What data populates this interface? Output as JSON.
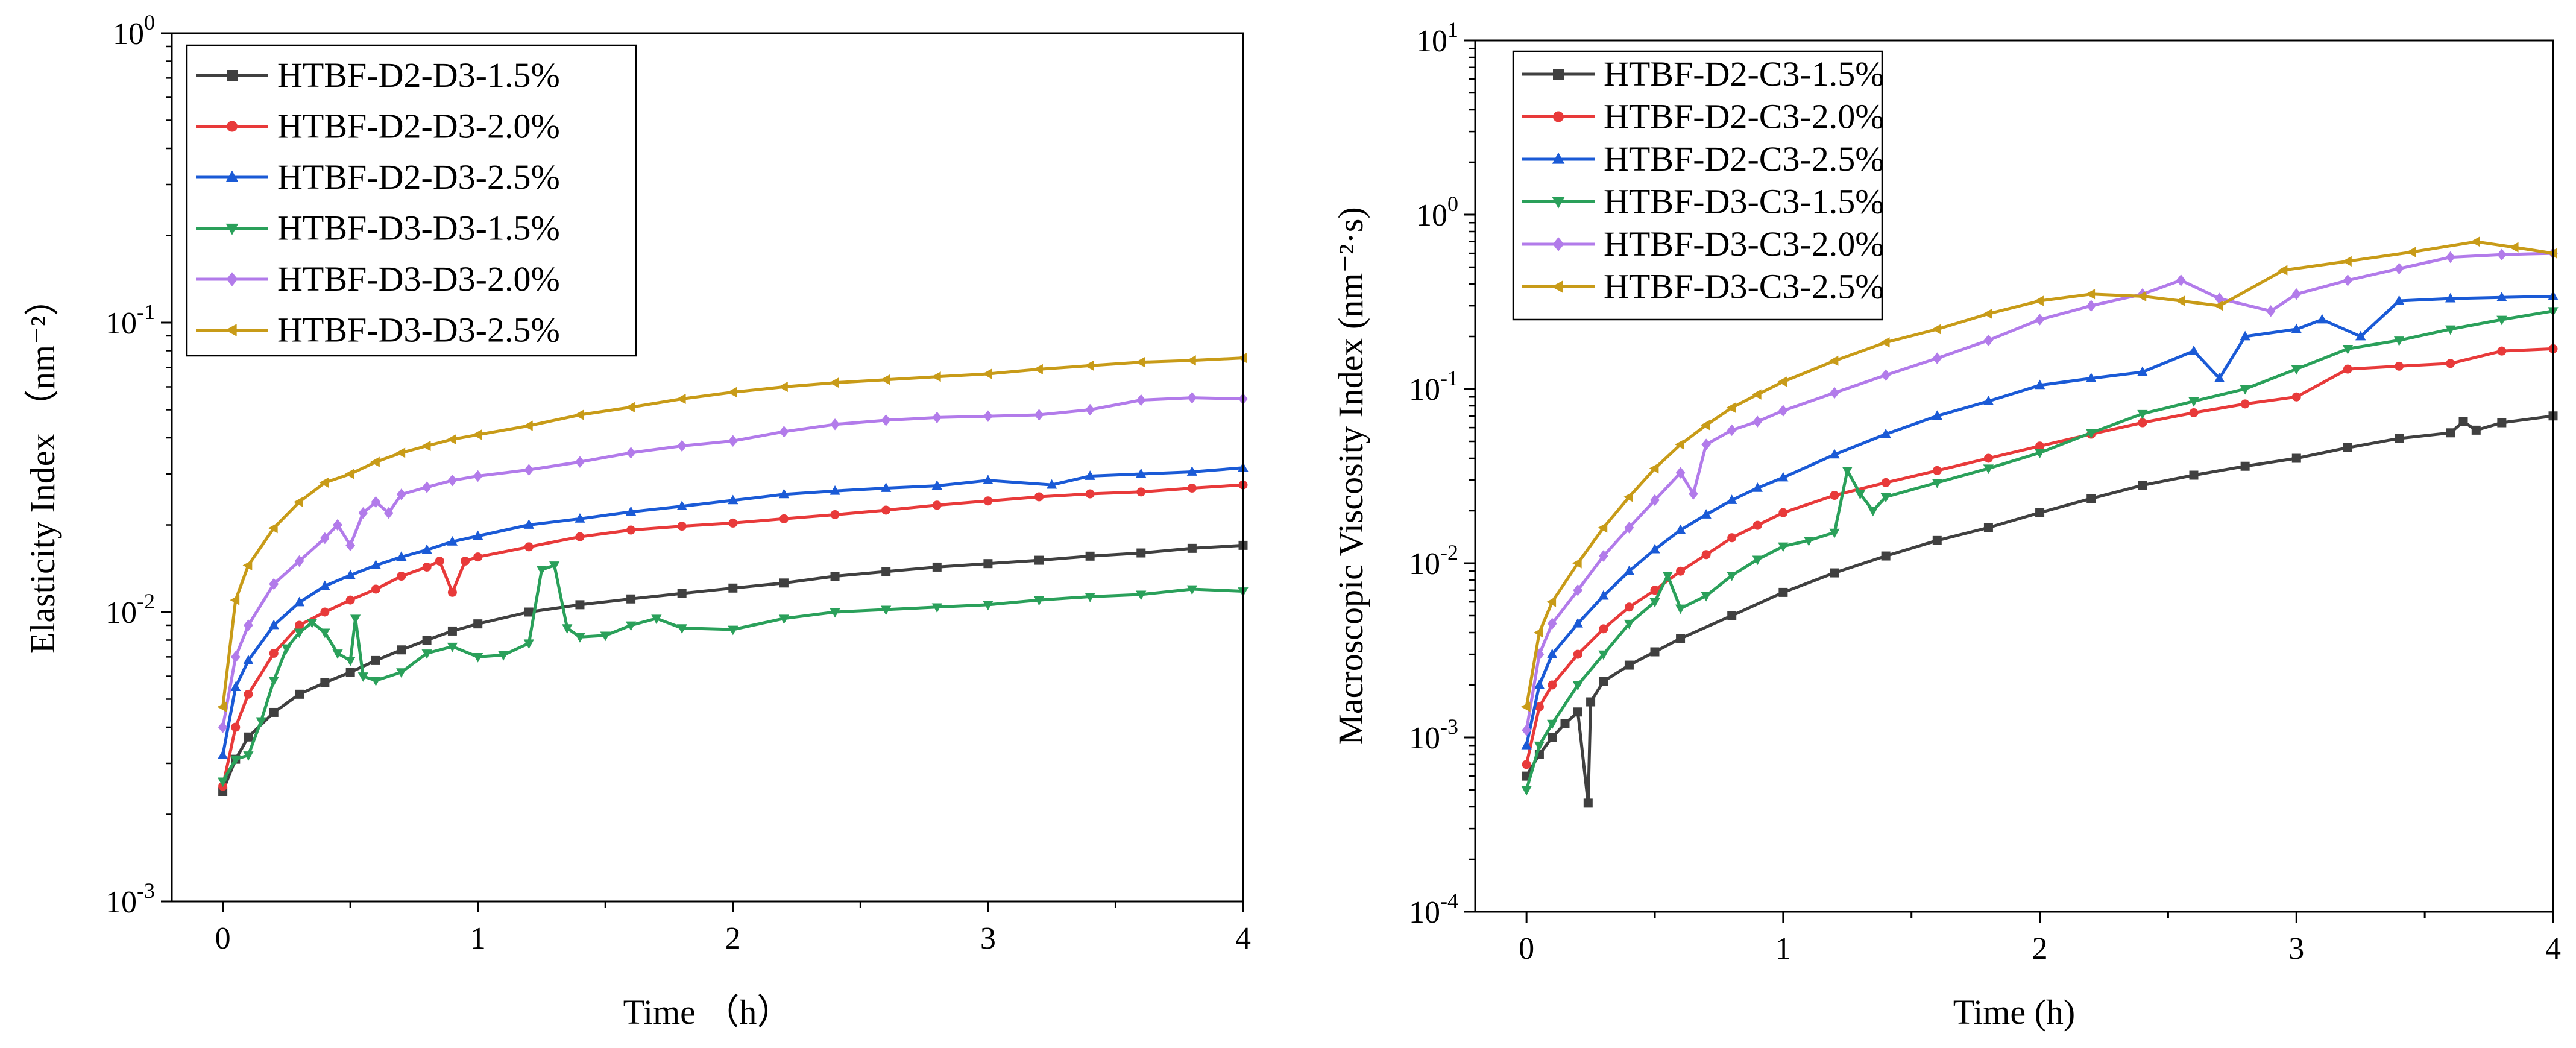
{
  "chart_data": [
    {
      "type": "line",
      "xlabel": "Time （h）",
      "ylabel": "Elasticity Index （nm⁻²）",
      "xlim": [
        -0.2,
        4
      ],
      "ylim": [
        0.001,
        1
      ],
      "yscale": "log",
      "xticks": [
        0,
        1,
        2,
        3,
        4
      ],
      "yticks": [
        {
          "value": 0.001,
          "base": "10",
          "exp": "-3"
        },
        {
          "value": 0.01,
          "base": "10",
          "exp": "-2"
        },
        {
          "value": 0.1,
          "base": "10",
          "exp": "-1"
        },
        {
          "value": 1,
          "base": "10",
          "exp": "0"
        }
      ],
      "grid": false,
      "legend_position": "top-left",
      "series": [
        {
          "name": "HTBF-D2-D3-1.5%",
          "color": "#404040",
          "marker": "square",
          "x": [
            0,
            0.05,
            0.1,
            0.2,
            0.3,
            0.4,
            0.5,
            0.6,
            0.7,
            0.8,
            0.9,
            1.0,
            1.2,
            1.4,
            1.6,
            1.8,
            2.0,
            2.2,
            2.4,
            2.6,
            2.8,
            3.0,
            3.2,
            3.4,
            3.6,
            3.8,
            4.0
          ],
          "y": [
            0.0024,
            0.0031,
            0.0037,
            0.0045,
            0.0052,
            0.0057,
            0.0062,
            0.0068,
            0.0074,
            0.008,
            0.0086,
            0.0091,
            0.01,
            0.0106,
            0.0111,
            0.0116,
            0.0121,
            0.0126,
            0.0133,
            0.0138,
            0.0143,
            0.0147,
            0.0151,
            0.0156,
            0.016,
            0.0166,
            0.017
          ]
        },
        {
          "name": "HTBF-D2-D3-2.0%",
          "color": "#e83a3a",
          "marker": "circle",
          "x": [
            0,
            0.05,
            0.1,
            0.2,
            0.3,
            0.4,
            0.5,
            0.6,
            0.7,
            0.8,
            0.85,
            0.9,
            0.95,
            1.0,
            1.2,
            1.4,
            1.6,
            1.8,
            2.0,
            2.2,
            2.4,
            2.6,
            2.8,
            3.0,
            3.2,
            3.4,
            3.6,
            3.8,
            4.0
          ],
          "y": [
            0.0025,
            0.004,
            0.0052,
            0.0072,
            0.009,
            0.01,
            0.011,
            0.012,
            0.0133,
            0.0143,
            0.015,
            0.0117,
            0.015,
            0.0155,
            0.0168,
            0.0182,
            0.0192,
            0.0198,
            0.0203,
            0.021,
            0.0217,
            0.0225,
            0.0234,
            0.0242,
            0.025,
            0.0256,
            0.026,
            0.0268,
            0.0275
          ]
        },
        {
          "name": "HTBF-D2-D3-2.5%",
          "color": "#1a5ad6",
          "marker": "triangle-up",
          "x": [
            0,
            0.05,
            0.1,
            0.2,
            0.3,
            0.4,
            0.5,
            0.6,
            0.7,
            0.8,
            0.9,
            1.0,
            1.2,
            1.4,
            1.6,
            1.8,
            2.0,
            2.2,
            2.4,
            2.6,
            2.8,
            3.0,
            3.25,
            3.4,
            3.6,
            3.8,
            4.0
          ],
          "y": [
            0.0032,
            0.0055,
            0.0068,
            0.009,
            0.0108,
            0.0123,
            0.0134,
            0.0145,
            0.0155,
            0.0164,
            0.0175,
            0.0183,
            0.02,
            0.021,
            0.0222,
            0.0232,
            0.0243,
            0.0255,
            0.0262,
            0.0268,
            0.0273,
            0.0285,
            0.0275,
            0.0295,
            0.03,
            0.0305,
            0.0315
          ]
        },
        {
          "name": "HTBF-D3-D3-1.5%",
          "color": "#2aa05a",
          "marker": "triangle-down",
          "x": [
            0,
            0.05,
            0.1,
            0.15,
            0.2,
            0.25,
            0.3,
            0.35,
            0.4,
            0.45,
            0.5,
            0.52,
            0.55,
            0.6,
            0.7,
            0.8,
            0.9,
            1.0,
            1.1,
            1.2,
            1.25,
            1.3,
            1.35,
            1.4,
            1.5,
            1.6,
            1.7,
            1.8,
            2.0,
            2.2,
            2.4,
            2.6,
            2.8,
            3.0,
            3.2,
            3.4,
            3.6,
            3.8,
            4.0
          ],
          "y": [
            0.0026,
            0.0031,
            0.0032,
            0.0042,
            0.0058,
            0.0075,
            0.0085,
            0.0092,
            0.0085,
            0.0072,
            0.0068,
            0.0095,
            0.006,
            0.0058,
            0.0062,
            0.0072,
            0.0076,
            0.007,
            0.0071,
            0.0078,
            0.014,
            0.0145,
            0.0088,
            0.0082,
            0.0083,
            0.009,
            0.0095,
            0.0088,
            0.0087,
            0.0095,
            0.01,
            0.0102,
            0.0104,
            0.0106,
            0.011,
            0.0113,
            0.0115,
            0.012,
            0.0118
          ]
        },
        {
          "name": "HTBF-D3-D3-2.0%",
          "color": "#b27bea",
          "marker": "diamond",
          "x": [
            0,
            0.05,
            0.1,
            0.2,
            0.3,
            0.4,
            0.45,
            0.5,
            0.55,
            0.6,
            0.65,
            0.7,
            0.8,
            0.9,
            1.0,
            1.2,
            1.4,
            1.6,
            1.8,
            2.0,
            2.2,
            2.4,
            2.6,
            2.8,
            3.0,
            3.2,
            3.4,
            3.6,
            3.8,
            4.0
          ],
          "y": [
            0.004,
            0.007,
            0.009,
            0.0125,
            0.015,
            0.018,
            0.02,
            0.017,
            0.022,
            0.024,
            0.022,
            0.0255,
            0.027,
            0.0285,
            0.0295,
            0.031,
            0.033,
            0.0355,
            0.0375,
            0.039,
            0.042,
            0.0445,
            0.046,
            0.047,
            0.0475,
            0.048,
            0.05,
            0.054,
            0.055,
            0.0545
          ]
        },
        {
          "name": "HTBF-D3-D3-2.5%",
          "color": "#c89b18",
          "marker": "triangle-left",
          "x": [
            0,
            0.05,
            0.1,
            0.2,
            0.3,
            0.4,
            0.5,
            0.6,
            0.7,
            0.8,
            0.9,
            1.0,
            1.2,
            1.4,
            1.6,
            1.8,
            2.0,
            2.2,
            2.4,
            2.6,
            2.8,
            3.0,
            3.2,
            3.4,
            3.6,
            3.8,
            4.0
          ],
          "y": [
            0.0047,
            0.011,
            0.0145,
            0.0195,
            0.024,
            0.028,
            0.03,
            0.033,
            0.0355,
            0.0375,
            0.0395,
            0.041,
            0.044,
            0.048,
            0.051,
            0.0545,
            0.0575,
            0.06,
            0.062,
            0.0635,
            0.065,
            0.0665,
            0.069,
            0.071,
            0.073,
            0.074,
            0.0755
          ]
        }
      ]
    },
    {
      "type": "line",
      "xlabel": "Time (h)",
      "ylabel": "Macroscopic Viscosity Index (nm⁻²·s)",
      "xlim": [
        -0.2,
        4
      ],
      "ylim": [
        0.0001,
        10
      ],
      "yscale": "log",
      "xticks": [
        0,
        1,
        2,
        3,
        4
      ],
      "yticks": [
        {
          "value": 0.0001,
          "base": "10",
          "exp": "-4"
        },
        {
          "value": 0.001,
          "base": "10",
          "exp": "-3"
        },
        {
          "value": 0.01,
          "base": "10",
          "exp": "-2"
        },
        {
          "value": 0.1,
          "base": "10",
          "exp": "-1"
        },
        {
          "value": 1,
          "base": "10",
          "exp": "0"
        },
        {
          "value": 10,
          "base": "10",
          "exp": "1"
        }
      ],
      "grid": false,
      "legend_position": "top-left",
      "series": [
        {
          "name": "HTBF-D2-C3-1.5%",
          "color": "#404040",
          "marker": "square",
          "x": [
            0,
            0.05,
            0.1,
            0.15,
            0.2,
            0.24,
            0.25,
            0.3,
            0.4,
            0.5,
            0.6,
            0.8,
            1.0,
            1.2,
            1.4,
            1.6,
            1.8,
            2.0,
            2.2,
            2.4,
            2.6,
            2.8,
            3.0,
            3.2,
            3.4,
            3.6,
            3.65,
            3.7,
            3.8,
            4.0
          ],
          "y": [
            0.0006,
            0.0008,
            0.001,
            0.0012,
            0.0014,
            0.00042,
            0.0016,
            0.0021,
            0.0026,
            0.0031,
            0.0037,
            0.005,
            0.0068,
            0.0088,
            0.011,
            0.0135,
            0.016,
            0.0195,
            0.0235,
            0.028,
            0.032,
            0.036,
            0.04,
            0.046,
            0.052,
            0.056,
            0.065,
            0.058,
            0.064,
            0.07
          ]
        },
        {
          "name": "HTBF-D2-C3-2.0%",
          "color": "#e83a3a",
          "marker": "circle",
          "x": [
            0,
            0.05,
            0.1,
            0.2,
            0.3,
            0.4,
            0.5,
            0.6,
            0.7,
            0.8,
            0.9,
            1.0,
            1.2,
            1.4,
            1.6,
            1.8,
            2.0,
            2.2,
            2.4,
            2.6,
            2.8,
            3.0,
            3.2,
            3.4,
            3.6,
            3.8,
            4.0
          ],
          "y": [
            0.0007,
            0.0015,
            0.002,
            0.003,
            0.0042,
            0.0056,
            0.007,
            0.009,
            0.0112,
            0.014,
            0.0165,
            0.0195,
            0.0245,
            0.029,
            0.034,
            0.04,
            0.047,
            0.055,
            0.064,
            0.073,
            0.082,
            0.09,
            0.13,
            0.135,
            0.14,
            0.165,
            0.17
          ]
        },
        {
          "name": "HTBF-D2-C3-2.5%",
          "color": "#1a5ad6",
          "marker": "triangle-up",
          "x": [
            0,
            0.05,
            0.1,
            0.2,
            0.3,
            0.4,
            0.5,
            0.6,
            0.7,
            0.8,
            0.9,
            1.0,
            1.2,
            1.4,
            1.6,
            1.8,
            2.0,
            2.2,
            2.4,
            2.6,
            2.7,
            2.8,
            3.0,
            3.1,
            3.25,
            3.4,
            3.6,
            3.8,
            4.0
          ],
          "y": [
            0.0009,
            0.002,
            0.003,
            0.0045,
            0.0065,
            0.009,
            0.012,
            0.0155,
            0.019,
            0.023,
            0.027,
            0.031,
            0.042,
            0.055,
            0.07,
            0.085,
            0.105,
            0.115,
            0.125,
            0.165,
            0.115,
            0.2,
            0.22,
            0.25,
            0.2,
            0.32,
            0.33,
            0.335,
            0.34
          ]
        },
        {
          "name": "HTBF-D3-C3-1.5%",
          "color": "#2aa05a",
          "marker": "triangle-down",
          "x": [
            0,
            0.05,
            0.1,
            0.2,
            0.3,
            0.4,
            0.5,
            0.55,
            0.6,
            0.7,
            0.8,
            0.9,
            1.0,
            1.1,
            1.2,
            1.25,
            1.3,
            1.35,
            1.4,
            1.6,
            1.8,
            2.0,
            2.2,
            2.4,
            2.6,
            2.8,
            3.0,
            3.2,
            3.4,
            3.6,
            3.8,
            4.0
          ],
          "y": [
            0.0005,
            0.0009,
            0.0012,
            0.002,
            0.003,
            0.0045,
            0.006,
            0.0085,
            0.0055,
            0.0065,
            0.0085,
            0.0105,
            0.0125,
            0.0135,
            0.015,
            0.034,
            0.025,
            0.02,
            0.024,
            0.029,
            0.035,
            0.043,
            0.056,
            0.072,
            0.085,
            0.1,
            0.13,
            0.17,
            0.19,
            0.22,
            0.25,
            0.28
          ]
        },
        {
          "name": "HTBF-D3-C3-2.0%",
          "color": "#b27bea",
          "marker": "diamond",
          "x": [
            0,
            0.05,
            0.1,
            0.2,
            0.3,
            0.4,
            0.5,
            0.6,
            0.65,
            0.7,
            0.8,
            0.9,
            1.0,
            1.2,
            1.4,
            1.6,
            1.8,
            2.0,
            2.2,
            2.4,
            2.55,
            2.7,
            2.9,
            3.0,
            3.2,
            3.4,
            3.6,
            3.8,
            4.0
          ],
          "y": [
            0.0011,
            0.003,
            0.0045,
            0.007,
            0.011,
            0.016,
            0.023,
            0.033,
            0.025,
            0.048,
            0.058,
            0.065,
            0.075,
            0.095,
            0.12,
            0.15,
            0.19,
            0.25,
            0.3,
            0.35,
            0.42,
            0.33,
            0.28,
            0.35,
            0.42,
            0.49,
            0.57,
            0.59,
            0.6
          ]
        },
        {
          "name": "HTBF-D3-C3-2.5%",
          "color": "#c89b18",
          "marker": "triangle-left",
          "x": [
            0,
            0.05,
            0.1,
            0.2,
            0.3,
            0.4,
            0.5,
            0.6,
            0.7,
            0.8,
            0.9,
            1.0,
            1.2,
            1.4,
            1.6,
            1.8,
            2.0,
            2.2,
            2.4,
            2.55,
            2.7,
            2.95,
            3.2,
            3.45,
            3.7,
            3.85,
            4.0
          ],
          "y": [
            0.0015,
            0.004,
            0.006,
            0.01,
            0.016,
            0.024,
            0.035,
            0.048,
            0.062,
            0.078,
            0.093,
            0.11,
            0.145,
            0.185,
            0.22,
            0.27,
            0.32,
            0.35,
            0.34,
            0.32,
            0.3,
            0.48,
            0.54,
            0.61,
            0.7,
            0.65,
            0.6
          ]
        }
      ]
    }
  ]
}
